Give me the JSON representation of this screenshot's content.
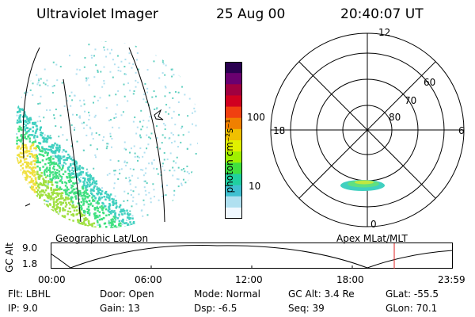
{
  "header": {
    "instrument": "Ultraviolet Imager",
    "date": "25 Aug 00",
    "time": "20:40:07 UT"
  },
  "colorbar": {
    "label": "photon cm⁻²s⁻¹",
    "tick_100": "100",
    "tick_10": "10",
    "colors": [
      "#2a0050",
      "#6a0070",
      "#a00040",
      "#d00020",
      "#f04010",
      "#f08000",
      "#f0c000",
      "#e0f000",
      "#a0f000",
      "#40e040",
      "#20d0a0",
      "#40c0d0",
      "#b0e0f0",
      "#f0f8ff"
    ]
  },
  "geo_panel": {
    "label": "Geographic Lat/Lon",
    "aurora_colors": [
      "#f0e040",
      "#a0e040",
      "#40e080",
      "#40d0c0"
    ]
  },
  "polar_panel": {
    "label": "Apex MLat/MLT",
    "mlt_labels": {
      "top": "12",
      "left": "18",
      "right": "6",
      "bottom": "0"
    },
    "lat_labels": [
      "60",
      "70",
      "80"
    ]
  },
  "orbit_plot": {
    "ylabel": "GC Alt",
    "y_ticks": [
      "9.0",
      "1.8"
    ],
    "x_ticks": [
      "00:00",
      "06:00",
      "12:00",
      "18:00",
      "23:59"
    ],
    "current_marker_color": "#e02020"
  },
  "info": {
    "filter": "Flt: LBHL",
    "ip": "IP:  9.0",
    "door": "Door: Open",
    "gain": "Gain: 13",
    "mode": "Mode: Normal",
    "dsp": "Dsp:   -6.5",
    "gc_alt": "GC Alt: 3.4 Re",
    "seq": "Seq: 39",
    "glat": "GLat: -55.5",
    "glon": "GLon:  70.1"
  }
}
